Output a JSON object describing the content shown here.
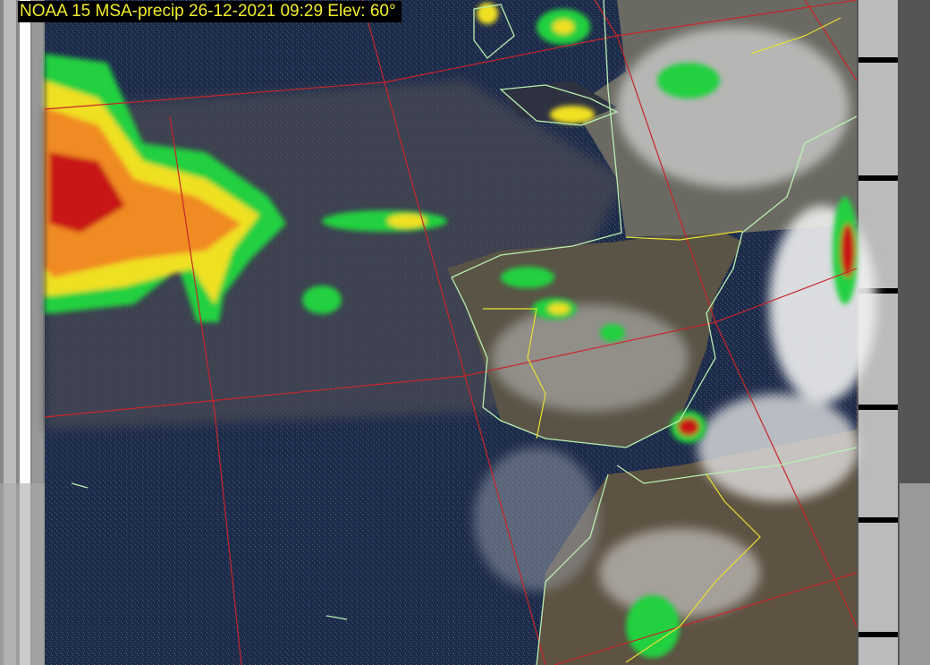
{
  "overlay": {
    "title": "NOAA 15 MSA-precip 26-12-2021 09:29 Elev: 60°"
  },
  "colors": {
    "ocean": "#1c2a48",
    "graticule": "#c8262a",
    "coastline": "#b8f0b0",
    "border": "#e8e030",
    "title_text": "#f2ee2a",
    "precip_light": "#22d040",
    "precip_mid": "#f0e020",
    "precip_heavy": "#d01818"
  }
}
